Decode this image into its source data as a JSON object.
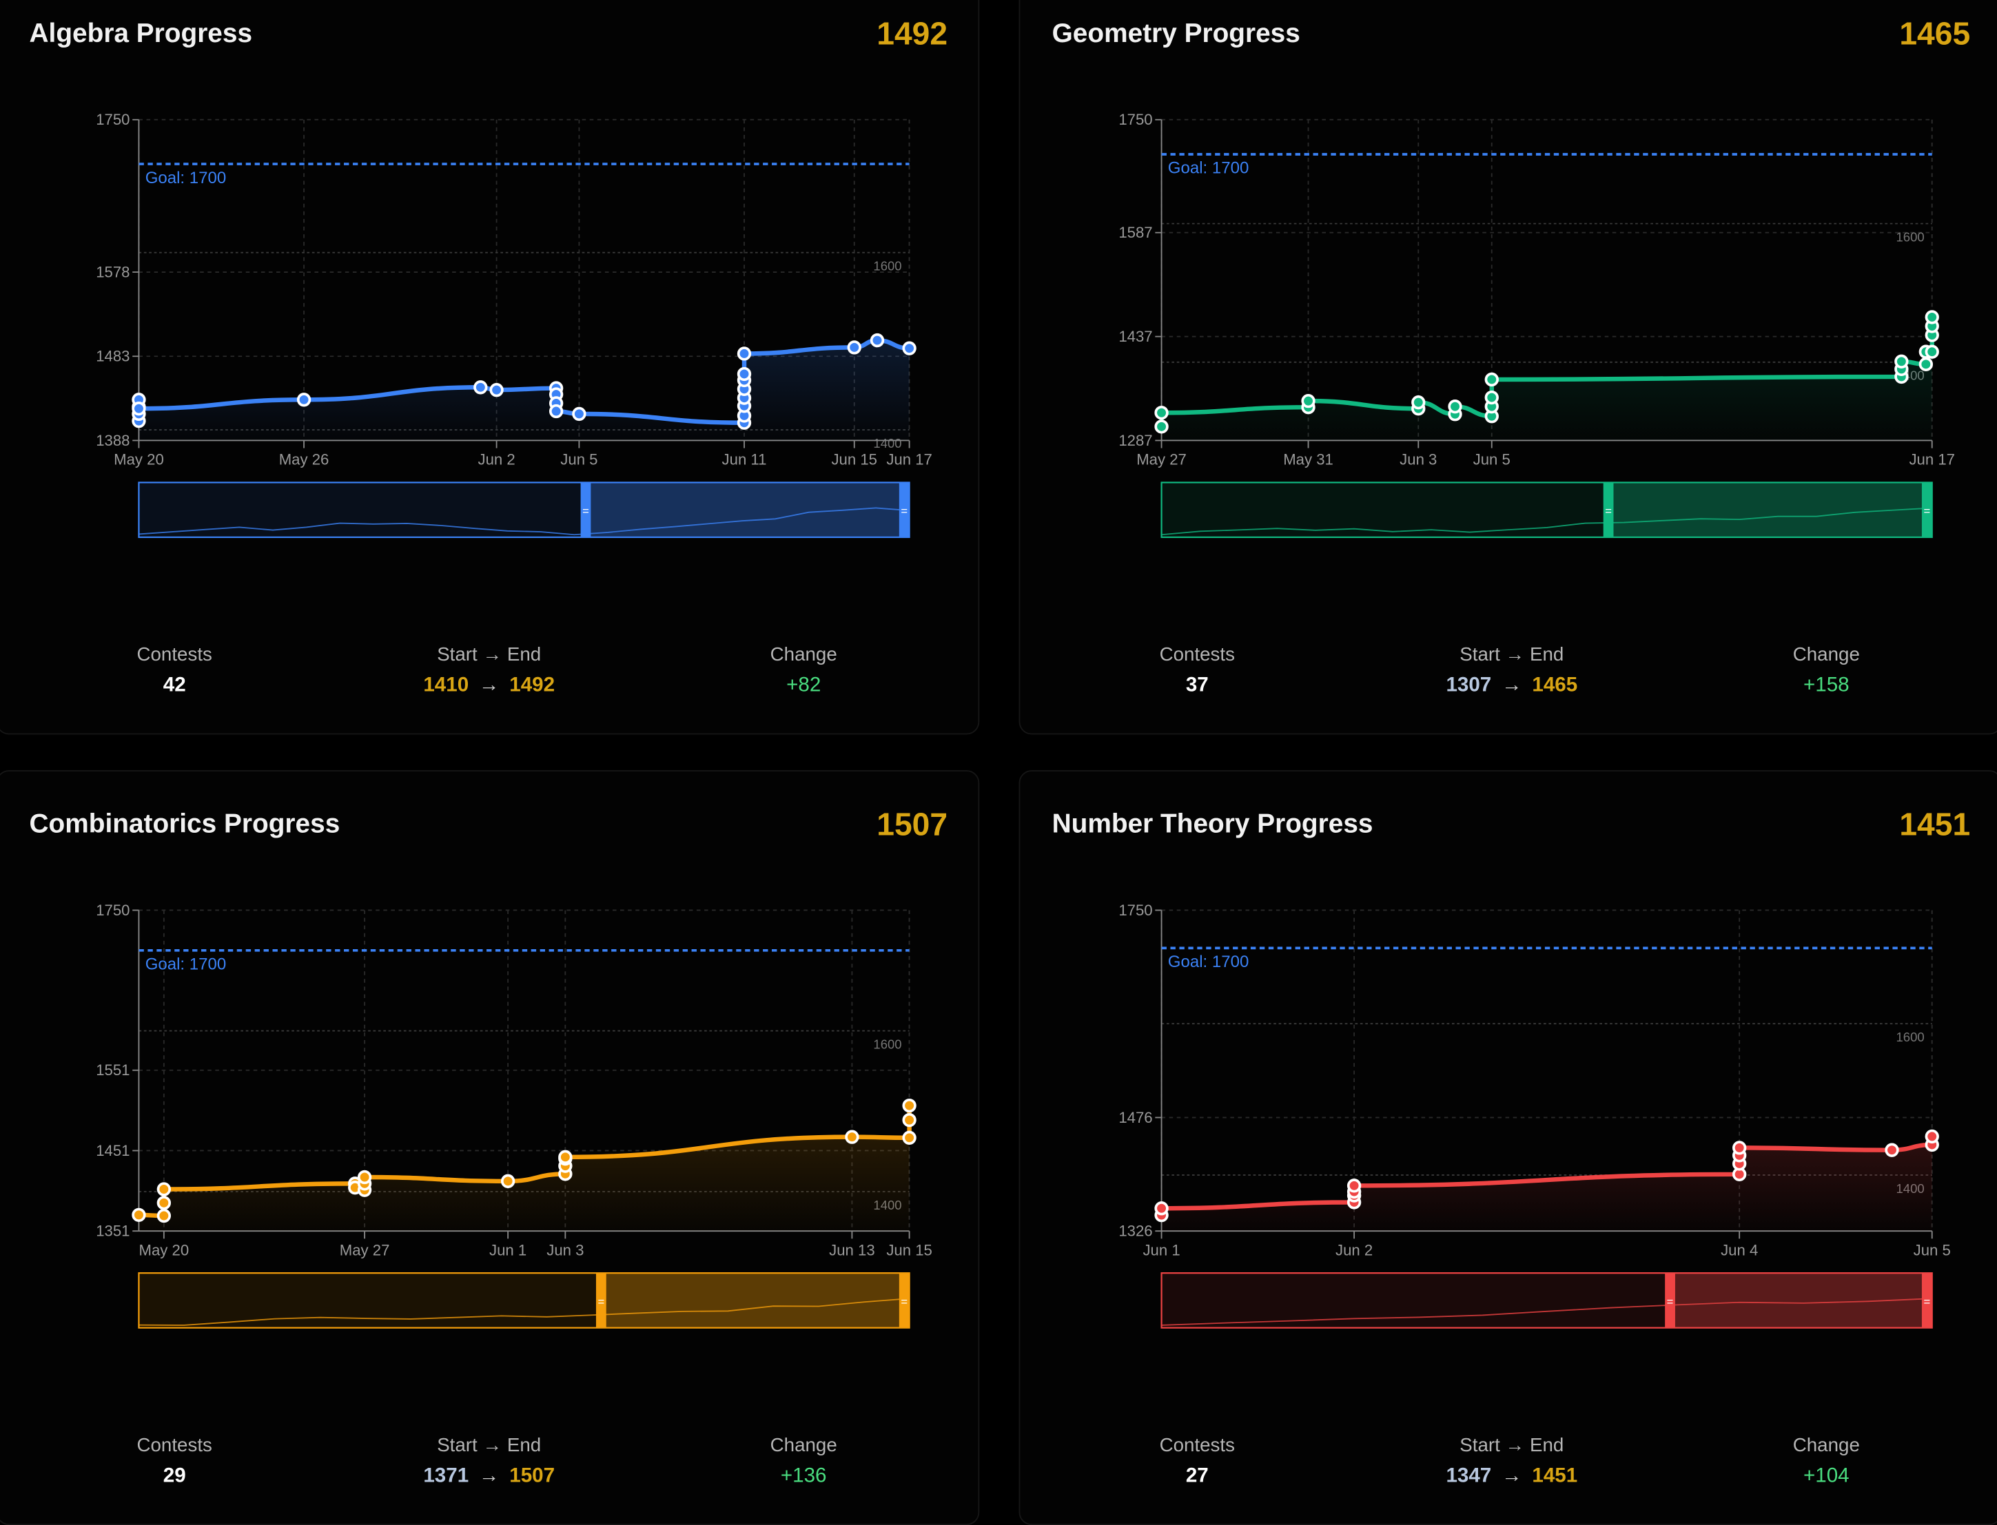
{
  "panels": [
    {
      "title": "Algebra Progress",
      "current": "1492",
      "color": "#3b82f6",
      "stats": {
        "contests_label": "Contests",
        "contests": "42",
        "range_label": "Start → End",
        "start": "1410",
        "end": "1492",
        "start_color": "#d9a514",
        "change_label": "Change",
        "change": "+82"
      },
      "chart_data": {
        "type": "line",
        "ylim": [
          1388,
          1750
        ],
        "yticks": [
          "1750",
          "1578",
          "1483",
          "1388"
        ],
        "xlim": [
          "05-20",
          "06-17"
        ],
        "xticks": [
          [
            "05-20",
            "May 20"
          ],
          [
            "05-26",
            "May 26"
          ],
          [
            "06-02",
            "Jun 2"
          ],
          [
            "06-05",
            "Jun 5"
          ],
          [
            "06-11",
            "Jun 11"
          ],
          [
            "06-15",
            "Jun 15"
          ],
          [
            "06-17",
            "Jun 17"
          ]
        ],
        "goal": 1700,
        "goal_label": "Goal: 1700",
        "ref_lines": [
          1600,
          1400
        ],
        "points": [
          [
            "05-20",
            1410
          ],
          [
            "05-20",
            1418
          ],
          [
            "05-20",
            1426
          ],
          [
            "05-20",
            1434
          ],
          [
            "05-20",
            1424
          ],
          [
            "05-26",
            1434
          ],
          [
            "06-01 10:00",
            1448
          ],
          [
            "06-02",
            1445
          ],
          [
            "06-04 04:00",
            1447
          ],
          [
            "06-04 04:00",
            1440
          ],
          [
            "06-04 04:00",
            1430
          ],
          [
            "06-04 04:00",
            1421
          ],
          [
            "06-05",
            1418
          ],
          [
            "06-11",
            1408
          ],
          [
            "06-11",
            1416
          ],
          [
            "06-11",
            1427
          ],
          [
            "06-11",
            1436
          ],
          [
            "06-11",
            1446
          ],
          [
            "06-11",
            1456
          ],
          [
            "06-11",
            1463
          ],
          [
            "06-11",
            1486
          ],
          [
            "06-15",
            1493
          ],
          [
            "06-15 20:00",
            1501
          ],
          [
            "06-17",
            1492
          ]
        ],
        "brush": [
          0.58,
          1.0
        ]
      }
    },
    {
      "title": "Geometry Progress",
      "current": "1465",
      "color": "#10b981",
      "stats": {
        "contests_label": "Contests",
        "contests": "37",
        "range_label": "Start → End",
        "start": "1307",
        "end": "1465",
        "start_color": "#b8c8e0",
        "change_label": "Change",
        "change": "+158"
      },
      "chart_data": {
        "type": "line",
        "ylim": [
          1287,
          1750
        ],
        "yticks": [
          "1750",
          "1587",
          "1437",
          "1287"
        ],
        "xlim": [
          "05-27",
          "06-17"
        ],
        "xticks": [
          [
            "05-27",
            "May 27"
          ],
          [
            "05-31",
            "May 31"
          ],
          [
            "06-03",
            "Jun 3"
          ],
          [
            "06-05",
            "Jun 5"
          ],
          [
            "06-17",
            "Jun 17"
          ]
        ],
        "goal": 1700,
        "goal_label": "Goal: 1700",
        "ref_lines": [
          1600,
          1400
        ],
        "points": [
          [
            "05-27",
            1307
          ],
          [
            "05-27",
            1327
          ],
          [
            "05-31",
            1335
          ],
          [
            "05-31",
            1344
          ],
          [
            "06-03",
            1333
          ],
          [
            "06-03",
            1342
          ],
          [
            "06-04",
            1325
          ],
          [
            "06-04",
            1336
          ],
          [
            "06-05",
            1322
          ],
          [
            "06-05",
            1336
          ],
          [
            "06-05",
            1349
          ],
          [
            "06-05",
            1375
          ],
          [
            "06-16 04:00",
            1379
          ],
          [
            "06-16 04:00",
            1390
          ],
          [
            "06-16 04:00",
            1401
          ],
          [
            "06-16 20:00",
            1397
          ],
          [
            "06-16 20:00",
            1415
          ],
          [
            "06-17",
            1415
          ],
          [
            "06-17",
            1439
          ],
          [
            "06-17",
            1452
          ],
          [
            "06-17",
            1465
          ]
        ],
        "brush": [
          0.58,
          1.0
        ]
      }
    },
    {
      "title": "Combinatorics Progress",
      "current": "1507",
      "color": "#f59e0b",
      "stats": {
        "contests_label": "Contests",
        "contests": "29",
        "range_label": "Start → End",
        "start": "1371",
        "end": "1507",
        "start_color": "#b8c8e0",
        "change_label": "Change",
        "change": "+136"
      },
      "chart_data": {
        "type": "line",
        "ylim": [
          1351,
          1750
        ],
        "yticks": [
          "1750",
          "1551",
          "1451",
          "1351"
        ],
        "xlim": [
          "05-19 03:00",
          "06-15"
        ],
        "xticks": [
          [
            "05-20",
            "May 20"
          ],
          [
            "05-27",
            "May 27"
          ],
          [
            "06-01",
            "Jun 1"
          ],
          [
            "06-03",
            "Jun 3"
          ],
          [
            "06-13",
            "Jun 13"
          ],
          [
            "06-15",
            "Jun 15"
          ]
        ],
        "goal": 1700,
        "goal_label": "Goal: 1700",
        "ref_lines": [
          1600,
          1400
        ],
        "points": [
          [
            "05-19 03:00",
            1371
          ],
          [
            "05-20",
            1370
          ],
          [
            "05-20",
            1386
          ],
          [
            "05-20",
            1403
          ],
          [
            "05-26 16:00",
            1410
          ],
          [
            "05-26 16:00",
            1405
          ],
          [
            "05-27",
            1402
          ],
          [
            "05-27",
            1410
          ],
          [
            "05-27",
            1418
          ],
          [
            "06-01",
            1413
          ],
          [
            "06-03",
            1422
          ],
          [
            "06-03",
            1432
          ],
          [
            "06-03",
            1441
          ],
          [
            "06-03",
            1443
          ],
          [
            "06-13",
            1468
          ],
          [
            "06-15",
            1467
          ],
          [
            "06-15",
            1489
          ],
          [
            "06-15",
            1507
          ]
        ],
        "brush": [
          0.6,
          1.0
        ]
      }
    },
    {
      "title": "Number Theory Progress",
      "current": "1451",
      "color": "#ef4444",
      "stats": {
        "contests_label": "Contests",
        "contests": "27",
        "range_label": "Start → End",
        "start": "1347",
        "end": "1451",
        "start_color": "#b8c8e0",
        "change_label": "Change",
        "change": "+104"
      },
      "chart_data": {
        "type": "line",
        "ylim": [
          1326,
          1750
        ],
        "yticks": [
          "1750",
          "1476",
          "1326"
        ],
        "xlim": [
          "06-01",
          "06-05"
        ],
        "xticks": [
          [
            "06-01",
            "Jun 1"
          ],
          [
            "06-02",
            "Jun 2"
          ],
          [
            "06-04",
            "Jun 4"
          ],
          [
            "06-05",
            "Jun 5"
          ]
        ],
        "goal": 1700,
        "goal_label": "Goal: 1700",
        "ref_lines": [
          1600,
          1400
        ],
        "points": [
          [
            "06-01",
            1347
          ],
          [
            "06-01",
            1356
          ],
          [
            "06-02",
            1364
          ],
          [
            "06-02",
            1373
          ],
          [
            "06-02",
            1378
          ],
          [
            "06-02",
            1386
          ],
          [
            "06-04",
            1401
          ],
          [
            "06-04",
            1415
          ],
          [
            "06-04",
            1426
          ],
          [
            "06-04",
            1436
          ],
          [
            "06-04 19:00",
            1433
          ],
          [
            "06-05",
            1440
          ],
          [
            "06-05",
            1451
          ]
        ],
        "brush": [
          0.66,
          1.0
        ]
      }
    }
  ]
}
